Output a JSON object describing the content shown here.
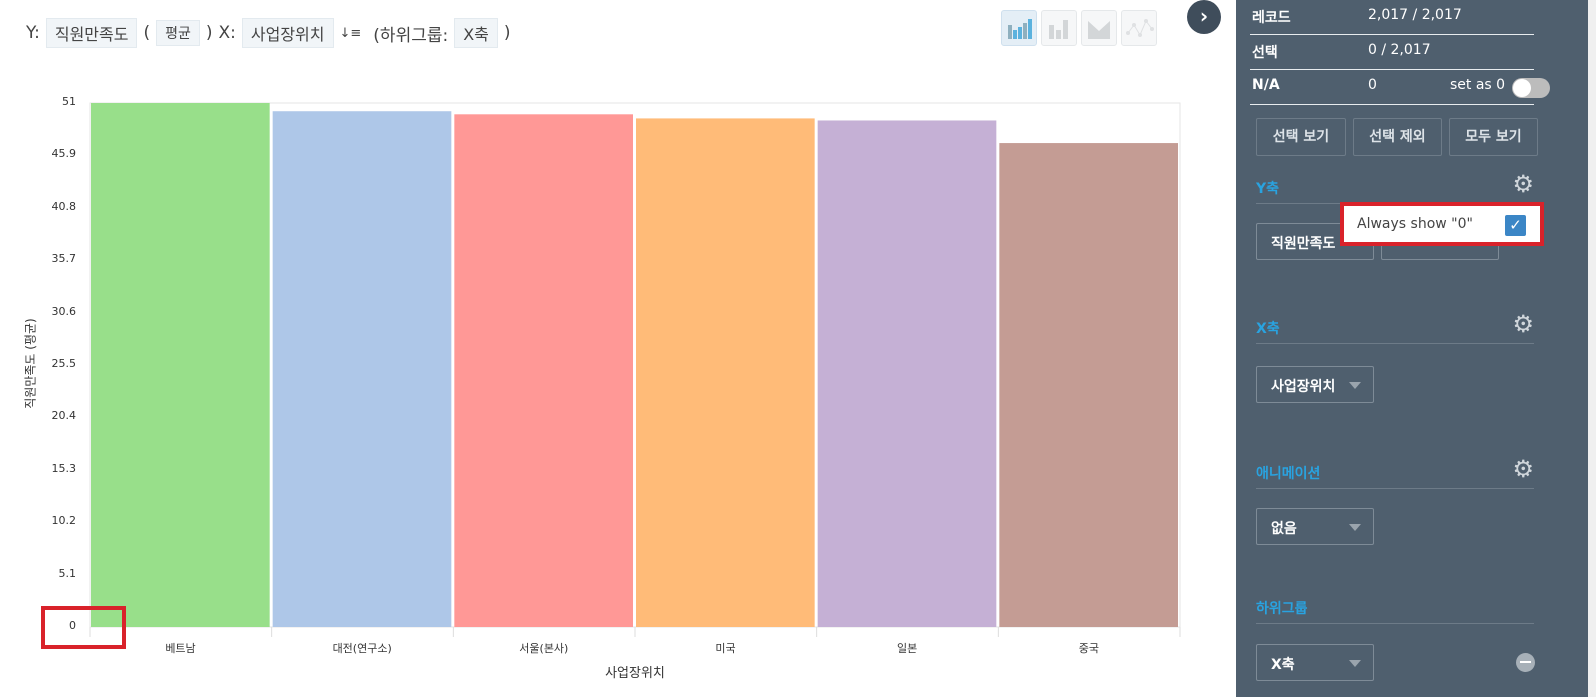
{
  "header": {
    "y_prefix": "Y:",
    "y_field": "직원만족도",
    "agg_open": "(",
    "aggregation": "평균",
    "agg_close": ")",
    "x_prefix": "X:",
    "x_field": "사업장위치",
    "sort_icon": "sort-desc-icon",
    "subgroup_open": "(하위그룹:",
    "subgroup": "X축",
    "subgroup_close": ")"
  },
  "chart_types": [
    "bar-chart-color",
    "bar-chart-gray",
    "area-chart",
    "scatter-line-chart"
  ],
  "sidebar": {
    "records_label": "레코드",
    "records_value": "2,017 / 2,017",
    "selection_label": "선택",
    "selection_value": "0 / 2,017",
    "na_label": "N/A",
    "na_value": "0",
    "set_as_zero_label": "set as 0",
    "set_as_zero_on": false,
    "buttons": [
      "선택 보기",
      "선택 제외",
      "모두 보기"
    ],
    "y_axis_title": "Y축",
    "y_field": "직원만족도",
    "popup_label": "Always show \"0\"",
    "popup_checked": true,
    "x_axis_title": "X축",
    "x_field": "사업장위치",
    "animation_title": "애니메이션",
    "animation_value": "없음",
    "subgroup_title": "하위그룹",
    "subgroup_value": "X축"
  },
  "chart_data": {
    "type": "bar",
    "categories": [
      "베트남",
      "대전(연구소)",
      "서울(본사)",
      "미국",
      "일본",
      "중국"
    ],
    "values": [
      51.0,
      50.2,
      49.9,
      49.5,
      49.3,
      47.1
    ],
    "colors": [
      "#98df8a",
      "#aec7e8",
      "#ff9896",
      "#ffbb78",
      "#c5b0d5",
      "#c49c94"
    ],
    "xlabel": "사업장위치",
    "ylabel": "직원만족도 (평균)",
    "yticks": [
      "0",
      "5.1",
      "10.2",
      "15.3",
      "20.4",
      "25.5",
      "30.6",
      "35.7",
      "40.8",
      "45.9",
      "51"
    ],
    "ylim": [
      0,
      51
    ]
  }
}
